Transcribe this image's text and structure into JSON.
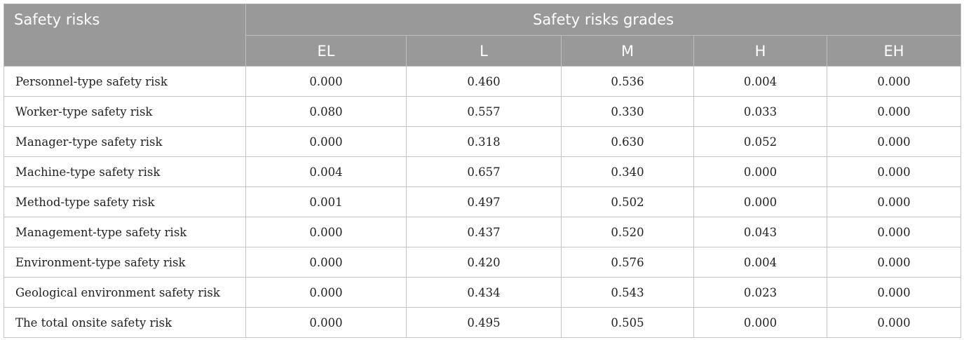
{
  "table": {
    "header": {
      "first_column": "Safety risks",
      "group_label": "Safety risks grades",
      "grades": [
        "EL",
        "L",
        "M",
        "H",
        "EH"
      ]
    },
    "rows": [
      {
        "name": "Personnel-type safety risk",
        "values": [
          "0.000",
          "0.460",
          "0.536",
          "0.004",
          "0.000"
        ]
      },
      {
        "name": "Worker-type safety risk",
        "values": [
          "0.080",
          "0.557",
          "0.330",
          "0.033",
          "0.000"
        ]
      },
      {
        "name": "Manager-type safety risk",
        "values": [
          "0.000",
          "0.318",
          "0.630",
          "0.052",
          "0.000"
        ]
      },
      {
        "name": "Machine-type safety risk",
        "values": [
          "0.004",
          "0.657",
          "0.340",
          "0.000",
          "0.000"
        ]
      },
      {
        "name": "Method-type safety risk",
        "values": [
          "0.001",
          "0.497",
          "0.502",
          "0.000",
          "0.000"
        ]
      },
      {
        "name": "Management-type safety risk",
        "values": [
          "0.000",
          "0.437",
          "0.520",
          "0.043",
          "0.000"
        ]
      },
      {
        "name": "Environment-type safety risk",
        "values": [
          "0.000",
          "0.420",
          "0.576",
          "0.004",
          "0.000"
        ]
      },
      {
        "name": "Geological environment safety risk",
        "values": [
          "0.000",
          "0.434",
          "0.543",
          "0.023",
          "0.000"
        ]
      },
      {
        "name": "The total onsite safety risk",
        "values": [
          "0.000",
          "0.495",
          "0.505",
          "0.000",
          "0.000"
        ]
      }
    ]
  }
}
